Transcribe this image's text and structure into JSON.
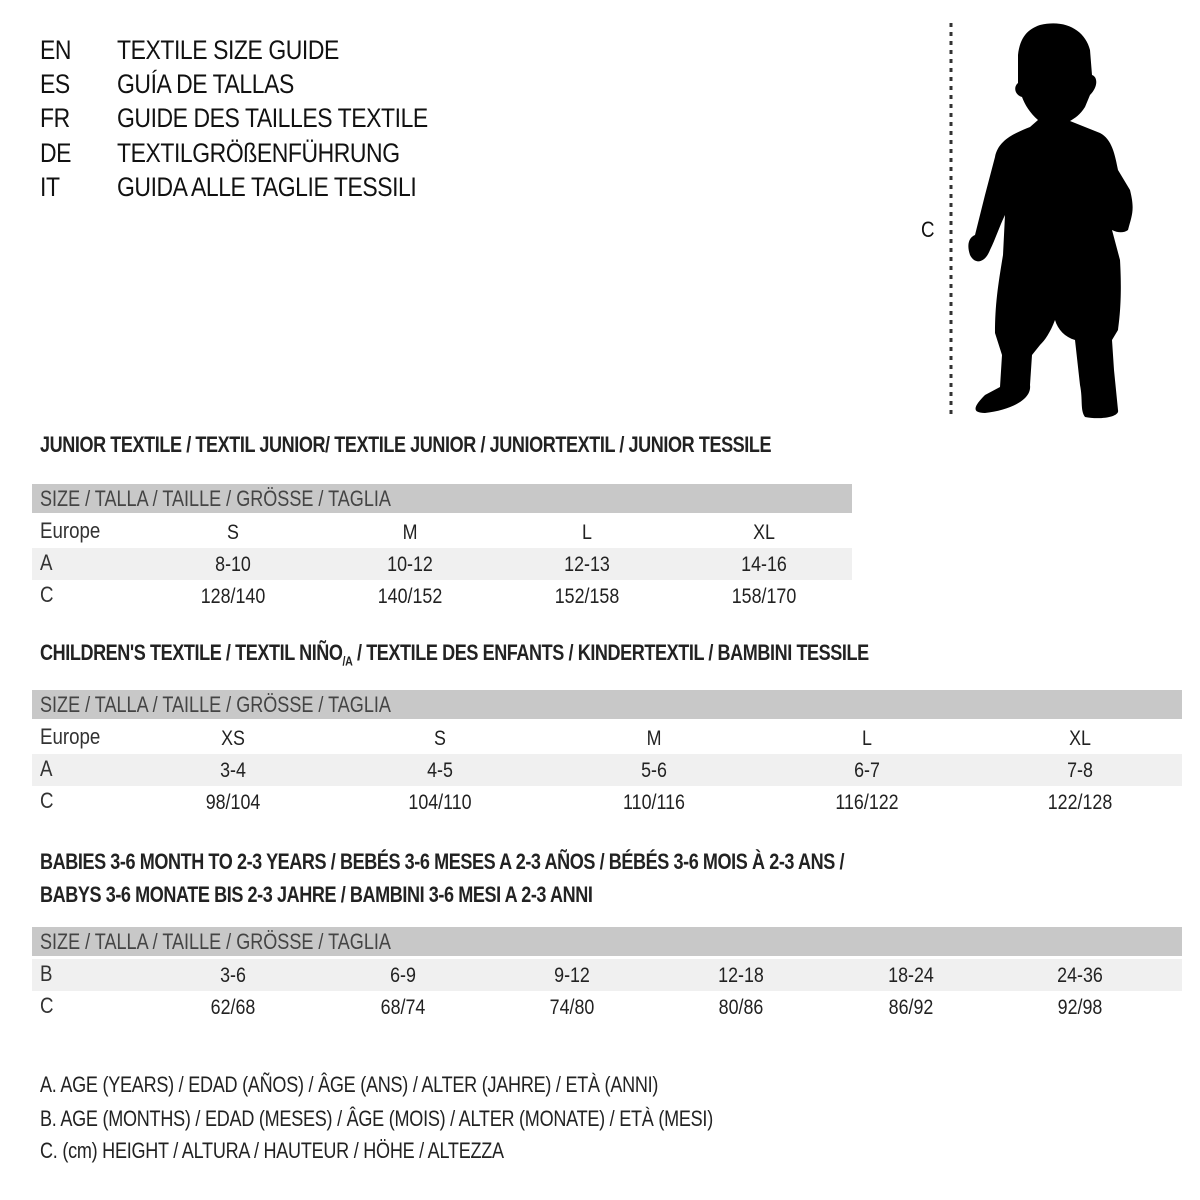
{
  "header": [
    {
      "code": "EN",
      "title": "TEXTILE SIZE GUIDE"
    },
    {
      "code": "ES",
      "title": "GUÍA DE TALLAS"
    },
    {
      "code": "FR",
      "title": "GUIDE DES TAILLES TEXTILE"
    },
    {
      "code": "DE",
      "title": "TEXTILGRÖßENFÜHRUNG"
    },
    {
      "code": "IT",
      "title": "GUIDA ALLE TAGLIE TESSILI"
    }
  ],
  "figure": {
    "measure_label": "C",
    "icon": "child-silhouette-icon"
  },
  "junior": {
    "title": "JUNIOR TEXTILE / TEXTIL JUNIOR/ TEXTILE JUNIOR / JUNIORTEXTIL / JUNIOR TESSILE",
    "size_header": "SIZE / TALLA / TAILLE / GRÖSSE / TAGLIA",
    "rows": [
      {
        "label": "Europe",
        "cells": [
          "S",
          "M",
          "L",
          "XL"
        ]
      },
      {
        "label": "A",
        "cells": [
          "8-10",
          "10-12",
          "12-13",
          "14-16"
        ]
      },
      {
        "label": "C",
        "cells": [
          "128/140",
          "140/152",
          "152/158",
          "158/170"
        ]
      }
    ]
  },
  "children": {
    "title": "CHILDREN'S TEXTILE / TEXTIL NIÑO",
    "title_sub": "/A",
    "title_rest": " / TEXTILE DES ENFANTS / KINDERTEXTIL / BAMBINI TESSILE",
    "size_header": "SIZE / TALLA / TAILLE / GRÖSSE / TAGLIA",
    "rows": [
      {
        "label": "Europe",
        "cells": [
          "XS",
          "S",
          "M",
          "L",
          "XL"
        ]
      },
      {
        "label": "A",
        "cells": [
          "3-4",
          "4-5",
          "5-6",
          "6-7",
          "7-8"
        ]
      },
      {
        "label": "C",
        "cells": [
          "98/104",
          "104/110",
          "110/116",
          "116/122",
          "122/128"
        ]
      }
    ]
  },
  "babies": {
    "title_line1": "BABIES 3-6 MONTH TO 2-3 YEARS / BEBÉS 3-6 MESES A 2-3 AÑOS / BÉBÉS 3-6 MOIS À 2-3 ANS /",
    "title_line2": "BABYS 3-6 MONATE BIS 2-3 JAHRE / BAMBINI 3-6 MESI A 2-3 ANNI",
    "size_header": "SIZE / TALLA / TAILLE / GRÖSSE / TAGLIA",
    "rows": [
      {
        "label": "B",
        "cells": [
          "3-6",
          "6-9",
          "9-12",
          "12-18",
          "18-24",
          "24-36"
        ]
      },
      {
        "label": "C",
        "cells": [
          "62/68",
          "68/74",
          "74/80",
          "80/86",
          "86/92",
          "92/98"
        ]
      }
    ]
  },
  "legend": [
    "A. AGE (YEARS) / EDAD (AÑOS) / ÂGE (ANS) / ALTER (JAHRE) / ETÀ (ANNI)",
    "B. AGE (MONTHS) / EDAD (MESES) / ÂGE (MOIS) / ALTER (MONATE) / ETÀ (MESI)",
    "C. (cm) HEIGHT / ALTURA / HAUTEUR / HÖHE / ALTEZZA"
  ]
}
